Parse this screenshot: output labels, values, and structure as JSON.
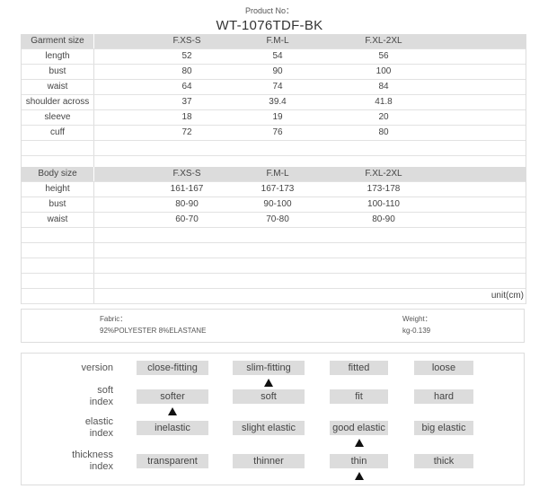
{
  "header": {
    "label": "Product No：",
    "product_no": "WT-1076TDF-BK"
  },
  "garment": {
    "columns": [
      "Garment size",
      "F.XS-S",
      "F.M-L",
      "F.XL-2XL"
    ],
    "rows": [
      [
        "length",
        "52",
        "54",
        "56"
      ],
      [
        "bust",
        "80",
        "90",
        "100"
      ],
      [
        "waist",
        "64",
        "74",
        "84"
      ],
      [
        "shoulder across",
        "37",
        "39.4",
        "41.8"
      ],
      [
        "sleeve",
        "18",
        "19",
        "20"
      ],
      [
        "cuff",
        "72",
        "76",
        "80"
      ]
    ]
  },
  "body": {
    "columns": [
      "Body size",
      "F.XS-S",
      "F.M-L",
      "F.XL-2XL"
    ],
    "rows": [
      [
        "height",
        "161-167",
        "167-173",
        "173-178"
      ],
      [
        "bust",
        "80-90",
        "90-100",
        "100-110"
      ],
      [
        "waist",
        "60-70",
        "70-80",
        "80-90"
      ]
    ],
    "unit": "unit(cm)"
  },
  "fabric": {
    "label": "Fabric：",
    "value": "92%POLYESTER 8%ELASTANE"
  },
  "weight": {
    "label": "Weight：",
    "value": "kg-0.139"
  },
  "indices": [
    {
      "label": "version",
      "options": [
        "close-fitting",
        "slim-fitting",
        "fitted",
        "loose"
      ],
      "selected": 1
    },
    {
      "label": "soft index",
      "options": [
        "softer",
        "soft",
        "fit",
        "hard"
      ],
      "selected": 0
    },
    {
      "label": "elastic index",
      "options": [
        "inelastic",
        "slight elastic",
        "good elastic",
        "big elastic"
      ],
      "selected": 2
    },
    {
      "label": "thickness index",
      "options": [
        "transparent",
        "thinner",
        "thin",
        "thick"
      ],
      "selected": 2
    }
  ]
}
